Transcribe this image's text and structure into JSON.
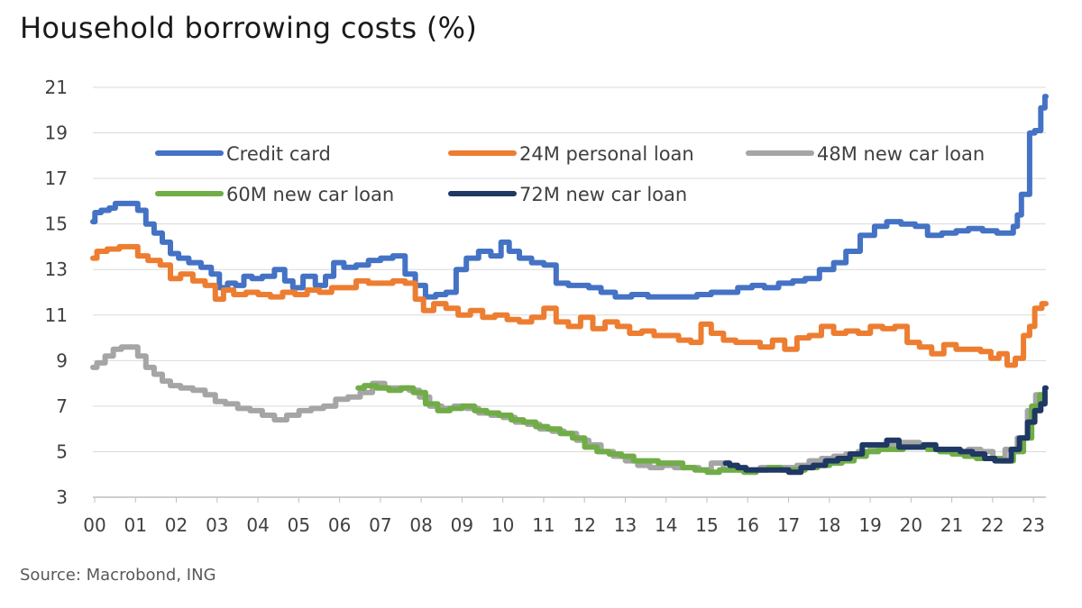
{
  "title": "Household borrowing costs (%)",
  "source": "Source: Macrobond, ING",
  "chart_data": {
    "type": "line",
    "title": "Household borrowing costs (%)",
    "xlabel": "",
    "ylabel": "",
    "xlim": [
      2000,
      2023.35
    ],
    "ylim": [
      3,
      21
    ],
    "yticks": [
      "3",
      "5",
      "7",
      "9",
      "11",
      "13",
      "15",
      "17",
      "19",
      "21"
    ],
    "xticks": [
      "00",
      "01",
      "02",
      "03",
      "04",
      "05",
      "06",
      "07",
      "08",
      "09",
      "10",
      "11",
      "12",
      "13",
      "14",
      "15",
      "16",
      "17",
      "18",
      "19",
      "20",
      "21",
      "22",
      "23"
    ],
    "grid": "horizontal",
    "legend_position": "top",
    "series": [
      {
        "name": "Credit card",
        "color": "#4472c4",
        "x": [
          2000.0,
          2000.1,
          2000.3,
          2000.5,
          2000.6,
          2000.8,
          2001.0,
          2001.2,
          2001.4,
          2001.6,
          2001.8,
          2002.0,
          2002.2,
          2002.5,
          2002.8,
          2003.0,
          2003.2,
          2003.4,
          2003.6,
          2003.8,
          2004.0,
          2004.3,
          2004.6,
          2004.8,
          2005.0,
          2005.3,
          2005.6,
          2005.8,
          2006.0,
          2006.3,
          2006.6,
          2006.9,
          2007.2,
          2007.5,
          2007.8,
          2008.0,
          2008.3,
          2008.5,
          2008.8,
          2009.0,
          2009.3,
          2009.6,
          2009.9,
          2010.1,
          2010.3,
          2010.6,
          2010.9,
          2011.2,
          2011.5,
          2011.8,
          2012.0,
          2012.3,
          2012.6,
          2013.0,
          2013.4,
          2013.8,
          2014.2,
          2014.6,
          2015.0,
          2015.3,
          2015.6,
          2016.0,
          2016.3,
          2016.6,
          2017.0,
          2017.3,
          2017.6,
          2018.0,
          2018.3,
          2018.6,
          2019.0,
          2019.3,
          2019.6,
          2020.0,
          2020.3,
          2020.6,
          2021.0,
          2021.3,
          2021.6,
          2022.0,
          2022.3,
          2022.5,
          2022.6,
          2022.7,
          2022.8,
          2022.9,
          2023.0,
          2023.15,
          2023.3,
          2023.35
        ],
        "values": [
          15.1,
          15.5,
          15.6,
          15.7,
          15.9,
          15.9,
          15.9,
          15.6,
          15.0,
          14.6,
          14.2,
          13.7,
          13.5,
          13.3,
          13.1,
          12.8,
          12.2,
          12.4,
          12.3,
          12.7,
          12.6,
          12.7,
          13.0,
          12.5,
          12.2,
          12.7,
          12.3,
          12.7,
          13.3,
          13.1,
          13.2,
          13.4,
          13.5,
          13.6,
          12.8,
          12.3,
          11.8,
          11.9,
          12.0,
          13.0,
          13.5,
          13.8,
          13.6,
          14.2,
          13.8,
          13.5,
          13.3,
          13.2,
          12.4,
          12.3,
          12.3,
          12.2,
          12.0,
          11.8,
          11.9,
          11.8,
          11.8,
          11.8,
          11.9,
          12.0,
          12.0,
          12.2,
          12.3,
          12.2,
          12.4,
          12.5,
          12.6,
          13.0,
          13.3,
          13.8,
          14.5,
          14.9,
          15.1,
          15.0,
          14.9,
          14.5,
          14.6,
          14.7,
          14.8,
          14.7,
          14.6,
          14.6,
          14.9,
          15.4,
          16.3,
          16.3,
          19.0,
          19.1,
          20.1,
          20.6
        ]
      },
      {
        "name": "24M personal loan",
        "color": "#ed7d31",
        "x": [
          2000.0,
          2000.2,
          2000.5,
          2000.8,
          2001.0,
          2001.2,
          2001.5,
          2001.8,
          2002.0,
          2002.3,
          2002.6,
          2002.9,
          2003.1,
          2003.3,
          2003.6,
          2003.9,
          2004.2,
          2004.5,
          2004.8,
          2005.1,
          2005.4,
          2005.7,
          2006.0,
          2006.3,
          2006.6,
          2006.9,
          2007.2,
          2007.5,
          2007.8,
          2008.0,
          2008.2,
          2008.5,
          2008.8,
          2009.1,
          2009.4,
          2009.7,
          2010.0,
          2010.3,
          2010.6,
          2010.9,
          2011.2,
          2011.5,
          2011.8,
          2012.1,
          2012.4,
          2012.7,
          2013.0,
          2013.3,
          2013.6,
          2013.9,
          2014.2,
          2014.5,
          2014.8,
          2015.0,
          2015.3,
          2015.6,
          2015.9,
          2016.2,
          2016.5,
          2016.8,
          2017.1,
          2017.4,
          2017.7,
          2018.0,
          2018.3,
          2018.6,
          2018.9,
          2019.2,
          2019.5,
          2019.8,
          2020.1,
          2020.4,
          2020.7,
          2021.0,
          2021.3,
          2021.6,
          2021.9,
          2022.1,
          2022.3,
          2022.5,
          2022.7,
          2022.9,
          2023.0,
          2023.15,
          2023.35
        ],
        "values": [
          13.5,
          13.8,
          13.9,
          14.0,
          14.0,
          13.6,
          13.4,
          13.2,
          12.6,
          12.8,
          12.5,
          12.3,
          11.7,
          12.1,
          11.9,
          12.0,
          11.9,
          11.8,
          12.0,
          11.9,
          12.1,
          12.0,
          12.2,
          12.2,
          12.5,
          12.4,
          12.4,
          12.5,
          12.4,
          11.7,
          11.2,
          11.5,
          11.3,
          11.0,
          11.2,
          10.9,
          11.0,
          10.8,
          10.7,
          10.9,
          11.3,
          10.7,
          10.5,
          10.9,
          10.4,
          10.7,
          10.5,
          10.2,
          10.3,
          10.1,
          10.1,
          9.9,
          9.8,
          10.6,
          10.2,
          9.9,
          9.8,
          9.8,
          9.6,
          9.9,
          9.5,
          10.0,
          10.1,
          10.5,
          10.2,
          10.3,
          10.2,
          10.5,
          10.4,
          10.5,
          9.8,
          9.6,
          9.3,
          9.7,
          9.5,
          9.5,
          9.4,
          9.1,
          9.3,
          8.8,
          9.1,
          10.1,
          10.5,
          11.3,
          11.5
        ]
      },
      {
        "name": "48M new car loan",
        "color": "#a5a5a5",
        "x": [
          2000.0,
          2000.2,
          2000.4,
          2000.6,
          2000.8,
          2001.0,
          2001.2,
          2001.4,
          2001.6,
          2001.8,
          2002.0,
          2002.3,
          2002.6,
          2002.9,
          2003.1,
          2003.4,
          2003.7,
          2004.0,
          2004.3,
          2004.6,
          2004.9,
          2005.2,
          2005.5,
          2005.8,
          2006.1,
          2006.4,
          2006.7,
          2007.0,
          2007.3,
          2007.6,
          2007.9,
          2008.1,
          2008.4,
          2008.7,
          2009.0,
          2009.3,
          2009.6,
          2009.9,
          2010.2,
          2010.5,
          2010.8,
          2011.1,
          2011.4,
          2011.7,
          2012.0,
          2012.3,
          2012.6,
          2012.9,
          2013.2,
          2013.5,
          2013.8,
          2014.1,
          2014.4,
          2014.7,
          2015.0,
          2015.3,
          2015.6,
          2015.9,
          2016.2,
          2016.5,
          2016.8,
          2017.1,
          2017.4,
          2017.7,
          2018.0,
          2018.3,
          2018.6,
          2018.9,
          2019.2,
          2019.5,
          2019.8,
          2020.1,
          2020.4,
          2020.7,
          2021.0,
          2021.3,
          2021.6,
          2021.9,
          2022.2,
          2022.5,
          2022.8,
          2023.0,
          2023.2
        ],
        "values": [
          8.7,
          8.9,
          9.2,
          9.5,
          9.6,
          9.6,
          9.2,
          8.7,
          8.4,
          8.1,
          7.9,
          7.8,
          7.7,
          7.5,
          7.2,
          7.1,
          6.9,
          6.8,
          6.6,
          6.4,
          6.6,
          6.8,
          6.9,
          7.0,
          7.3,
          7.4,
          7.6,
          8.0,
          7.8,
          7.8,
          7.7,
          7.4,
          7.0,
          6.9,
          7.0,
          6.9,
          6.7,
          6.6,
          6.5,
          6.3,
          6.2,
          6.0,
          5.9,
          5.8,
          5.5,
          5.3,
          5.0,
          4.8,
          4.6,
          4.4,
          4.3,
          4.4,
          4.3,
          4.3,
          4.2,
          4.5,
          4.2,
          4.2,
          4.2,
          4.3,
          4.3,
          4.3,
          4.4,
          4.6,
          4.7,
          4.8,
          4.9,
          5.0,
          5.2,
          5.3,
          5.4,
          5.4,
          5.3,
          5.1,
          5.0,
          5.0,
          5.1,
          5.0,
          4.7,
          5.1,
          5.6,
          6.8,
          7.5
        ]
      },
      {
        "name": "60M new car loan",
        "color": "#70ad47",
        "x": [
          2006.5,
          2006.8,
          2007.1,
          2007.4,
          2007.7,
          2008.0,
          2008.3,
          2008.6,
          2008.9,
          2009.2,
          2009.5,
          2009.8,
          2010.1,
          2010.4,
          2010.7,
          2011.0,
          2011.3,
          2011.6,
          2011.9,
          2012.2,
          2012.5,
          2012.8,
          2013.1,
          2013.4,
          2013.7,
          2014.0,
          2014.3,
          2014.6,
          2014.9,
          2015.2,
          2015.5,
          2015.8,
          2016.1,
          2016.4,
          2016.7,
          2017.0,
          2017.3,
          2017.6,
          2017.9,
          2018.2,
          2018.5,
          2018.8,
          2019.1,
          2019.4,
          2019.7,
          2020.0,
          2020.3,
          2020.6,
          2020.9,
          2021.2,
          2021.5,
          2021.8,
          2022.1,
          2022.4,
          2022.7,
          2022.9,
          2023.1,
          2023.3
        ],
        "values": [
          7.8,
          7.9,
          7.8,
          7.7,
          7.8,
          7.6,
          7.1,
          6.8,
          6.9,
          7.0,
          6.8,
          6.7,
          6.6,
          6.4,
          6.3,
          6.1,
          6.0,
          5.8,
          5.6,
          5.2,
          5.0,
          4.9,
          4.8,
          4.6,
          4.6,
          4.5,
          4.5,
          4.3,
          4.2,
          4.1,
          4.2,
          4.2,
          4.1,
          4.2,
          4.3,
          4.2,
          4.2,
          4.3,
          4.4,
          4.5,
          4.6,
          4.8,
          5.0,
          5.1,
          5.1,
          5.2,
          5.2,
          5.1,
          5.0,
          4.9,
          4.8,
          4.7,
          4.7,
          4.6,
          5.0,
          5.6,
          7.0,
          7.5
        ]
      },
      {
        "name": "72M new car loan",
        "color": "#1f3864",
        "x": [
          2015.5,
          2015.7,
          2015.9,
          2016.1,
          2016.3,
          2016.6,
          2016.9,
          2017.2,
          2017.5,
          2017.8,
          2018.1,
          2018.4,
          2018.7,
          2019.0,
          2019.3,
          2019.6,
          2019.9,
          2020.2,
          2020.5,
          2020.8,
          2021.1,
          2021.4,
          2021.7,
          2022.0,
          2022.2,
          2022.4,
          2022.6,
          2022.8,
          2023.0,
          2023.15,
          2023.3,
          2023.35
        ],
        "values": [
          4.5,
          4.4,
          4.3,
          4.2,
          4.2,
          4.2,
          4.2,
          4.1,
          4.3,
          4.4,
          4.6,
          4.7,
          4.9,
          5.3,
          5.3,
          5.5,
          5.2,
          5.2,
          5.3,
          5.1,
          5.1,
          5.0,
          4.9,
          4.7,
          4.6,
          4.6,
          5.1,
          5.6,
          6.3,
          6.8,
          7.1,
          7.8
        ]
      }
    ]
  }
}
